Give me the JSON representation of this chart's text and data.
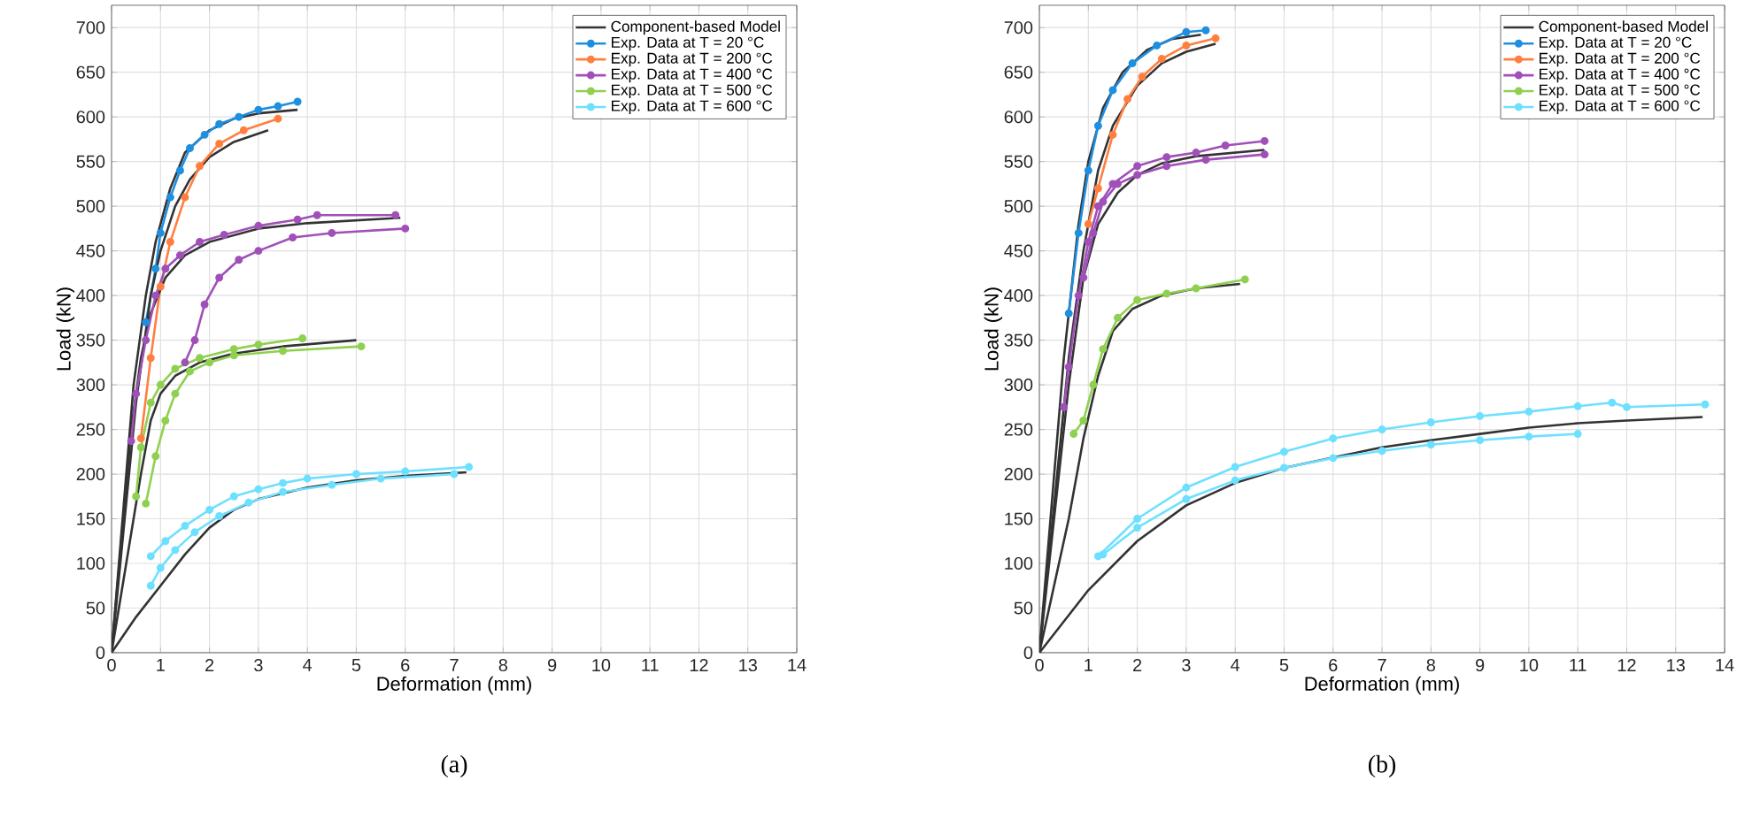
{
  "chart_data": [
    {
      "type": "line",
      "title": "(a)",
      "xlabel": "Deformation (mm)",
      "ylabel": "Load (kN)",
      "xlim": [
        0,
        14
      ],
      "ylim": [
        0,
        725
      ],
      "xticks": [
        0,
        1,
        2,
        3,
        4,
        5,
        6,
        7,
        8,
        9,
        10,
        11,
        12,
        13,
        14
      ],
      "yticks": [
        0,
        50,
        100,
        150,
        200,
        250,
        300,
        350,
        400,
        450,
        500,
        550,
        600,
        650,
        700
      ],
      "grid": true,
      "legend": "top right",
      "series": [
        {
          "name": "Component-based Model",
          "color": "#333333",
          "marker": "none",
          "x": [
            0,
            0.45,
            0.7,
            0.9,
            1.2,
            1.5,
            2,
            2.5,
            3,
            3.8
          ],
          "values": [
            0,
            300,
            400,
            460,
            520,
            560,
            585,
            598,
            604,
            608
          ]
        },
        {
          "name": "Exp. Data at T = 20 °C",
          "color": "#1f8fe0",
          "marker": "circle",
          "x": [
            0.7,
            0.9,
            1.0,
            1.2,
            1.4,
            1.6,
            1.9,
            2.2,
            2.6,
            3,
            3.4,
            3.8
          ],
          "values": [
            370,
            430,
            470,
            510,
            540,
            565,
            580,
            592,
            600,
            608,
            612,
            617
          ]
        },
        {
          "color": "#333333",
          "marker": "none",
          "x": [
            0,
            0.5,
            0.8,
            1.0,
            1.3,
            1.6,
            2,
            2.5,
            3.2
          ],
          "values": [
            0,
            280,
            400,
            450,
            500,
            530,
            555,
            572,
            585
          ]
        },
        {
          "name": "Exp. Data at T = 200 °C",
          "color": "#ff7f40",
          "marker": "circle",
          "x": [
            0.6,
            0.8,
            1.0,
            1.2,
            1.5,
            1.8,
            2.2,
            2.7,
            3.4
          ],
          "values": [
            240,
            330,
            410,
            460,
            510,
            545,
            570,
            585,
            598
          ]
        },
        {
          "color": "#333333",
          "marker": "none",
          "x": [
            0,
            0.4,
            0.6,
            0.8,
            1.1,
            1.5,
            2,
            3,
            4,
            5.9
          ],
          "values": [
            0,
            250,
            330,
            380,
            420,
            445,
            460,
            475,
            481,
            487
          ]
        },
        {
          "name": "Exp. Data at T = 400 °C",
          "color": "#a050b8",
          "marker": "circle",
          "x": [
            0.4,
            0.5,
            0.7,
            0.9,
            1.1,
            1.4,
            1.8,
            2.3,
            3,
            3.8,
            4.2,
            5.8
          ],
          "values": [
            237,
            290,
            350,
            400,
            430,
            445,
            460,
            468,
            478,
            485,
            490,
            490
          ]
        },
        {
          "color": "#a050b8",
          "marker": "circle",
          "x": [
            1.5,
            1.7,
            1.9,
            2.2,
            2.6,
            3,
            3.7,
            4.5,
            6.0
          ],
          "values": [
            325,
            350,
            390,
            420,
            440,
            450,
            465,
            470,
            475
          ]
        },
        {
          "color": "#333333",
          "marker": "none",
          "x": [
            0,
            0.6,
            0.8,
            1.0,
            1.3,
            1.8,
            2.5,
            3.5,
            5
          ],
          "values": [
            0,
            200,
            260,
            290,
            310,
            325,
            335,
            343,
            350
          ]
        },
        {
          "name": "Exp. Data at T = 500 °C",
          "color": "#90d050",
          "marker": "circle",
          "x": [
            0.5,
            0.6,
            0.8,
            1.0,
            1.3,
            1.8,
            2.5,
            3,
            3.9
          ],
          "values": [
            175,
            230,
            280,
            300,
            318,
            330,
            340,
            345,
            352
          ]
        },
        {
          "color": "#90d050",
          "marker": "circle",
          "x": [
            0.7,
            0.9,
            1.1,
            1.3,
            1.6,
            2.0,
            2.5,
            3.5,
            5.1
          ],
          "values": [
            167,
            220,
            260,
            290,
            315,
            325,
            333,
            338,
            343
          ]
        },
        {
          "color": "#333333",
          "marker": "none",
          "x": [
            0,
            0.5,
            1,
            1.5,
            2,
            2.5,
            3,
            4,
            5,
            6,
            7.25
          ],
          "values": [
            0,
            40,
            75,
            110,
            140,
            160,
            172,
            185,
            193,
            198,
            202
          ]
        },
        {
          "name": "Exp. Data at T = 600 °C",
          "color": "#6ee0ff",
          "marker": "circle",
          "x": [
            0.8,
            1.1,
            1.5,
            2,
            2.5,
            3,
            3.5,
            4,
            5,
            6,
            7.3
          ],
          "values": [
            108,
            125,
            142,
            160,
            175,
            183,
            190,
            195,
            200,
            203,
            208
          ]
        },
        {
          "color": "#6ee0ff",
          "marker": "circle",
          "x": [
            0.8,
            1.0,
            1.3,
            1.7,
            2.2,
            2.8,
            3.5,
            4.5,
            5.5,
            7
          ],
          "values": [
            75,
            95,
            115,
            135,
            153,
            168,
            180,
            188,
            195,
            200
          ]
        }
      ]
    },
    {
      "type": "line",
      "title": "(b)",
      "xlabel": "Deformation (mm)",
      "ylabel": "Load (kN)",
      "xlim": [
        0,
        14
      ],
      "ylim": [
        0,
        725
      ],
      "xticks": [
        0,
        1,
        2,
        3,
        4,
        5,
        6,
        7,
        8,
        9,
        10,
        11,
        12,
        13,
        14
      ],
      "yticks": [
        0,
        50,
        100,
        150,
        200,
        250,
        300,
        350,
        400,
        450,
        500,
        550,
        600,
        650,
        700
      ],
      "grid": true,
      "legend": "top right",
      "series": [
        {
          "name": "Component-based Model",
          "color": "#333333",
          "marker": "none",
          "x": [
            0,
            0.5,
            0.8,
            1,
            1.3,
            1.7,
            2.2,
            2.7,
            3.3
          ],
          "values": [
            0,
            330,
            480,
            550,
            610,
            650,
            675,
            687,
            692
          ]
        },
        {
          "name": "Exp. Data at T = 20 °C",
          "color": "#1f8fe0",
          "marker": "circle",
          "x": [
            0.6,
            0.8,
            1.0,
            1.2,
            1.5,
            1.9,
            2.4,
            3.0,
            3.4
          ],
          "values": [
            380,
            470,
            540,
            590,
            630,
            660,
            680,
            695,
            697
          ]
        },
        {
          "color": "#333333",
          "marker": "none",
          "x": [
            0,
            0.6,
            0.9,
            1.2,
            1.5,
            2,
            2.5,
            3,
            3.6
          ],
          "values": [
            0,
            330,
            450,
            540,
            590,
            635,
            660,
            673,
            682
          ]
        },
        {
          "name": "Exp. Data at T = 200 °C",
          "color": "#ff7f40",
          "marker": "circle",
          "x": [
            1.0,
            1.2,
            1.5,
            1.8,
            2.1,
            2.5,
            3,
            3.6
          ],
          "values": [
            480,
            520,
            580,
            620,
            645,
            665,
            680,
            688
          ]
        },
        {
          "color": "#333333",
          "marker": "none",
          "x": [
            0,
            0.6,
            0.9,
            1.2,
            1.6,
            2,
            2.5,
            3.2,
            4.6
          ],
          "values": [
            0,
            300,
            420,
            480,
            515,
            535,
            548,
            556,
            563
          ]
        },
        {
          "name": "Exp. Data at T = 400 °C",
          "color": "#a050b8",
          "marker": "circle",
          "x": [
            0.5,
            0.6,
            0.8,
            1.0,
            1.2,
            1.5,
            2,
            2.6,
            3.2,
            3.8,
            4.6
          ],
          "values": [
            275,
            320,
            400,
            460,
            500,
            525,
            545,
            555,
            560,
            568,
            573
          ]
        },
        {
          "color": "#a050b8",
          "marker": "circle",
          "x": [
            0.9,
            1.1,
            1.3,
            1.6,
            2,
            2.6,
            3.4,
            4.6
          ],
          "values": [
            420,
            470,
            505,
            525,
            535,
            545,
            552,
            558
          ]
        },
        {
          "color": "#333333",
          "marker": "none",
          "x": [
            0,
            0.6,
            0.9,
            1.2,
            1.5,
            1.9,
            2.5,
            3.2,
            4.1
          ],
          "values": [
            0,
            150,
            240,
            310,
            360,
            385,
            400,
            408,
            413
          ]
        },
        {
          "name": "Exp. Data at T = 500 °C",
          "color": "#90d050",
          "marker": "circle",
          "x": [
            0.7,
            0.9,
            1.1,
            1.3,
            1.6,
            2,
            2.6,
            3.2,
            4.2
          ],
          "values": [
            245,
            260,
            300,
            340,
            375,
            395,
            402,
            408,
            418
          ]
        },
        {
          "color": "#333333",
          "marker": "none",
          "x": [
            0,
            1,
            2,
            3,
            4,
            5,
            7,
            8,
            9,
            10,
            11,
            12,
            13.55
          ],
          "values": [
            0,
            70,
            125,
            165,
            190,
            207,
            230,
            238,
            245,
            252,
            257,
            260,
            264
          ]
        },
        {
          "name": "Exp. Data at T = 600 °C",
          "color": "#6ee0ff",
          "marker": "circle",
          "x": [
            1.2,
            2,
            3,
            4,
            5,
            6,
            7,
            8,
            9,
            10,
            11,
            11.7,
            12,
            13.6
          ],
          "values": [
            108,
            150,
            185,
            208,
            225,
            240,
            250,
            258,
            265,
            270,
            276,
            280,
            275,
            278
          ]
        },
        {
          "color": "#6ee0ff",
          "marker": "circle",
          "x": [
            1.3,
            2,
            3,
            4,
            5,
            6,
            7,
            8,
            9,
            10,
            11
          ],
          "values": [
            110,
            140,
            172,
            193,
            207,
            218,
            226,
            233,
            238,
            242,
            245
          ]
        }
      ]
    }
  ]
}
